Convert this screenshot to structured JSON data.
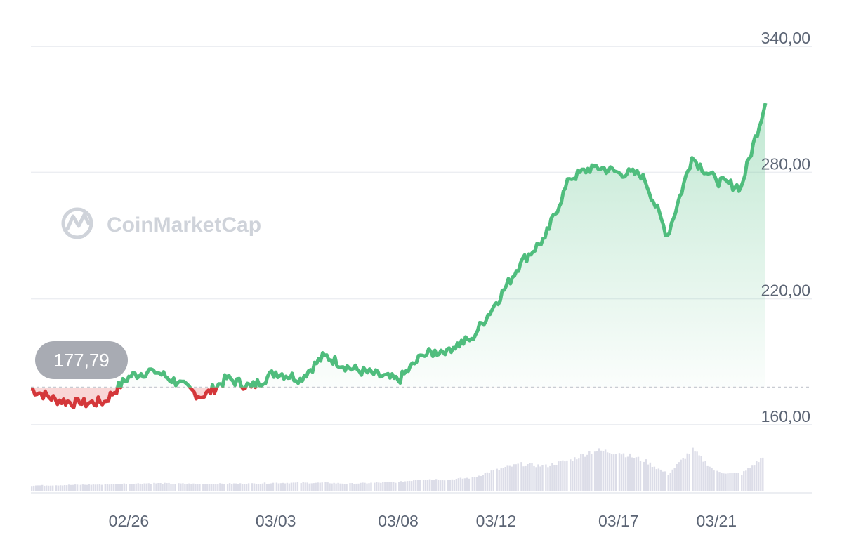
{
  "watermark": {
    "text": "CoinMarketCap",
    "icon": "coinmarketcap-logo-icon"
  },
  "reference": {
    "value": 177.79,
    "label": "177,79"
  },
  "colors": {
    "up": "#4fbd7d",
    "down": "#d4373a",
    "area_top": "#63c58f",
    "area_down": "#f4b8b8",
    "grid": "#eceef2",
    "reference_line": "#c9ccd3",
    "badge": "#a8abb3",
    "volume": "#dcdde8"
  },
  "chart_data": {
    "type": "line",
    "title": "",
    "xlabel": "",
    "ylabel": "",
    "ylim": [
      160,
      340
    ],
    "y_ticks": [
      {
        "value": 340,
        "label": "340,00"
      },
      {
        "value": 280,
        "label": "280,00"
      },
      {
        "value": 220,
        "label": "220,00"
      },
      {
        "value": 160,
        "label": "160,00"
      }
    ],
    "x_ticks": [
      "02/26",
      "03/03",
      "03/08",
      "03/12",
      "03/17",
      "03/21"
    ],
    "x_domain": [
      "02/22",
      "03/23"
    ],
    "baseline": 177.79,
    "grid": true,
    "legend": "none",
    "series": [
      {
        "x": [
          "02/22",
          "02/23",
          "02/24",
          "02/25",
          "02/26",
          "02/27",
          "02/28",
          "02/29",
          "03/01",
          "03/02",
          "03/03",
          "03/04",
          "03/05",
          "03/06",
          "03/07",
          "03/08",
          "03/09",
          "03/10",
          "03/11",
          "03/12",
          "03/13",
          "03/14",
          "03/15",
          "03/16",
          "03/17",
          "03/18",
          "03/19",
          "03/20",
          "03/21",
          "03/22",
          "03/23"
        ],
        "values": [
          177,
          172,
          170,
          171,
          183,
          186,
          180,
          173,
          182,
          178,
          185,
          182,
          193,
          187,
          184,
          181,
          193,
          196,
          201,
          218,
          237,
          249,
          277,
          283,
          280,
          279,
          250,
          287,
          276,
          273,
          313
        ],
        "volume": [
          1.5,
          1.6,
          1.7,
          1.8,
          2.0,
          2.1,
          2.0,
          1.9,
          2.0,
          2.0,
          2.2,
          2.2,
          2.2,
          2.0,
          2.2,
          2.4,
          3.2,
          3.0,
          3.5,
          5.5,
          7.0,
          6.5,
          8.0,
          10.5,
          10.0,
          8.0,
          4.5,
          10.5,
          5.0,
          4.5,
          9.0
        ]
      }
    ]
  }
}
